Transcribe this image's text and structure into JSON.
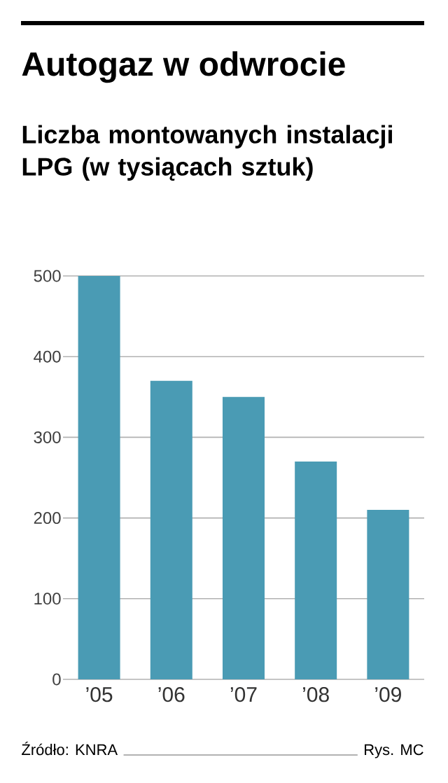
{
  "chart_data": {
    "type": "bar",
    "title": "Autogaz w odwrocie",
    "subtitle": "Liczba montowanych instalacji LPG (w tysiącach sztuk)",
    "categories": [
      "’05",
      "’06",
      "’07",
      "’08",
      "’09"
    ],
    "values": [
      500,
      370,
      350,
      270,
      210
    ],
    "color": "#4a9bb4",
    "ylim": [
      0,
      500
    ],
    "yticks": [
      0,
      100,
      200,
      300,
      400,
      500
    ],
    "grid": "y",
    "annotations": [
      "Źródło: KNRA",
      "Rys. MC"
    ]
  }
}
